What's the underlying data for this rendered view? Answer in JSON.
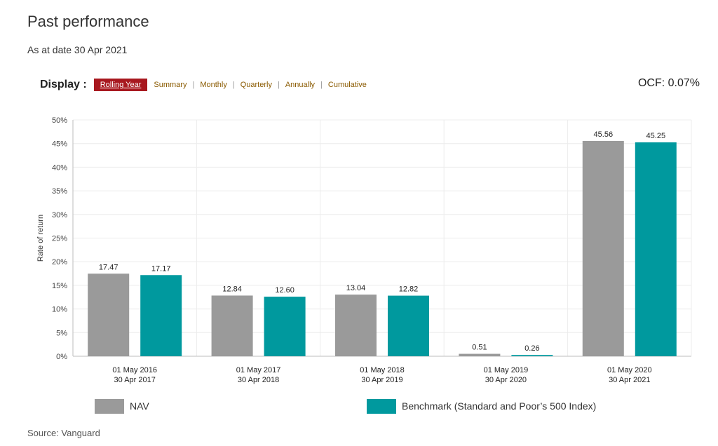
{
  "header": {
    "title": "Past performance",
    "as_at": "As at date 30 Apr 2021"
  },
  "display": {
    "label": "Display :",
    "active_tab": "Rolling Year",
    "tabs": [
      "Summary",
      "Monthly",
      "Quarterly",
      "Annually",
      "Cumulative"
    ]
  },
  "ocf": "OCF: 0.07%",
  "source": "Source: Vanguard",
  "colors": {
    "nav": "#9a9a9a",
    "benchmark": "#00999e",
    "accent": "#a8181f"
  },
  "chart_data": {
    "type": "bar",
    "categories": [
      [
        "01 May 2016",
        "30 Apr 2017"
      ],
      [
        "01 May 2017",
        "30 Apr 2018"
      ],
      [
        "01 May 2018",
        "30 Apr 2019"
      ],
      [
        "01 May 2019",
        "30 Apr 2020"
      ],
      [
        "01 May 2020",
        "30 Apr 2021"
      ]
    ],
    "series": [
      {
        "name": "NAV",
        "values": [
          17.47,
          12.84,
          13.04,
          0.51,
          45.56
        ],
        "labels": [
          "17.47",
          "12.84",
          "13.04",
          "0.51",
          "45.56"
        ]
      },
      {
        "name": "Benchmark (Standard and Poor’s 500 Index)",
        "values": [
          17.17,
          12.6,
          12.82,
          0.26,
          45.25
        ],
        "labels": [
          "17.17",
          "12.60",
          "12.82",
          "0.26",
          "45.25"
        ]
      }
    ],
    "ylabel": "Rate of return",
    "ylim": [
      0,
      50
    ],
    "yticks": [
      "0%",
      "5%",
      "10%",
      "15%",
      "20%",
      "25%",
      "30%",
      "35%",
      "40%",
      "45%",
      "50%"
    ],
    "grid": true,
    "legend": "bottom"
  }
}
